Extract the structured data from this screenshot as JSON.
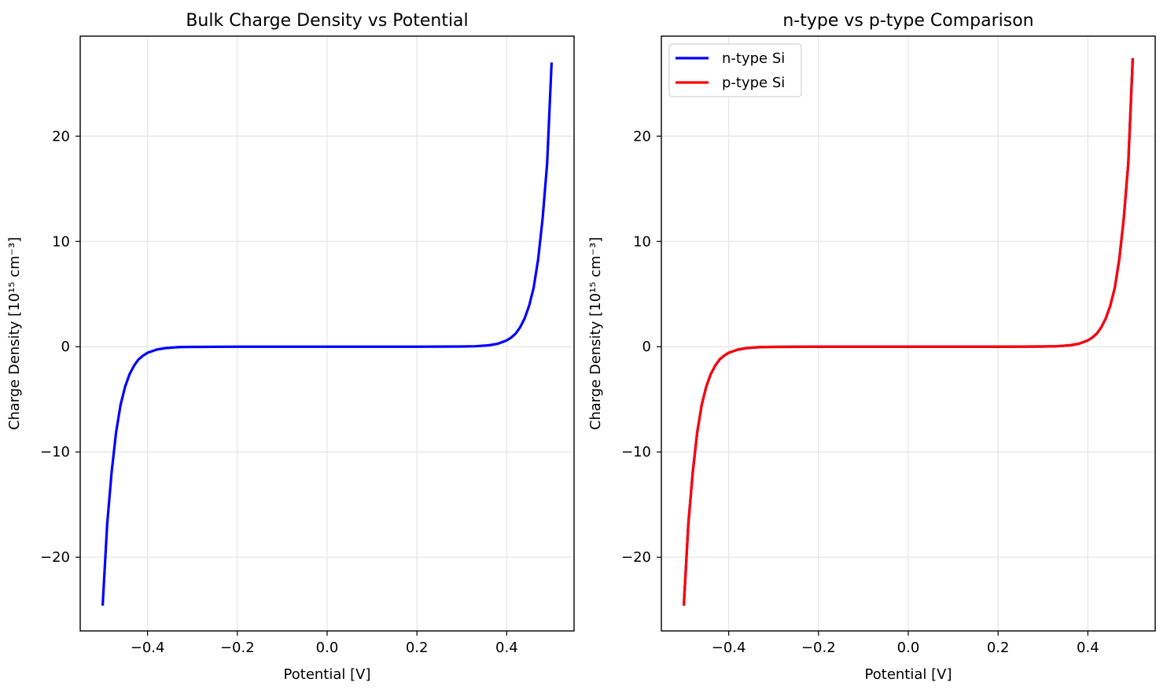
{
  "chart_data": [
    {
      "type": "line",
      "title": "Bulk Charge Density vs Potential",
      "xlabel": "Potential [V]",
      "ylabel": "Charge Density [10¹⁵ cm⁻³]",
      "xlim": [
        -0.55,
        0.55
      ],
      "ylim": [
        -27.0,
        29.5
      ],
      "xticks": [
        -0.4,
        -0.2,
        0.0,
        0.2,
        0.4
      ],
      "xtick_labels": [
        "−0.4",
        "−0.2",
        "0.0",
        "0.2",
        "0.4"
      ],
      "yticks": [
        -20,
        -10,
        0,
        10,
        20
      ],
      "ytick_labels": [
        "−20",
        "−10",
        "0",
        "10",
        "20"
      ],
      "grid": true,
      "legend": null,
      "x": [
        -0.5,
        -0.49,
        -0.48,
        -0.47,
        -0.46,
        -0.45,
        -0.44,
        -0.43,
        -0.42,
        -0.41,
        -0.4,
        -0.38,
        -0.36,
        -0.33,
        -0.3,
        -0.25,
        -0.2,
        -0.1,
        0.0,
        0.1,
        0.2,
        0.25,
        0.3,
        0.33,
        0.36,
        0.38,
        0.4,
        0.41,
        0.42,
        0.43,
        0.44,
        0.45,
        0.46,
        0.47,
        0.48,
        0.49,
        0.5
      ],
      "series": [
        {
          "color": "#0000ff",
          "values": [
            -24.6,
            -16.9,
            -11.9,
            -8.1,
            -5.5,
            -3.8,
            -2.6,
            -1.8,
            -1.2,
            -0.85,
            -0.58,
            -0.28,
            -0.13,
            -0.04,
            -0.02,
            -0.01,
            0.0,
            0.0,
            0.0,
            0.0,
            0.0,
            0.01,
            0.02,
            0.04,
            0.13,
            0.28,
            0.6,
            0.87,
            1.25,
            1.85,
            2.7,
            3.9,
            5.6,
            8.3,
            12.2,
            17.4,
            27.0
          ]
        }
      ]
    },
    {
      "type": "line",
      "title": "n-type vs p-type Comparison",
      "xlabel": "Potential [V]",
      "ylabel": "Charge Density [10¹⁵ cm⁻³]",
      "xlim": [
        -0.55,
        0.55
      ],
      "ylim": [
        -27.0,
        29.5
      ],
      "xticks": [
        -0.4,
        -0.2,
        0.0,
        0.2,
        0.4
      ],
      "xtick_labels": [
        "−0.4",
        "−0.2",
        "0.0",
        "0.2",
        "0.4"
      ],
      "yticks": [
        -20,
        -10,
        0,
        10,
        20
      ],
      "ytick_labels": [
        "−20",
        "−10",
        "0",
        "10",
        "20"
      ],
      "grid": true,
      "legend": "top-left",
      "x": [
        -0.5,
        -0.49,
        -0.48,
        -0.47,
        -0.46,
        -0.45,
        -0.44,
        -0.43,
        -0.42,
        -0.41,
        -0.4,
        -0.38,
        -0.36,
        -0.33,
        -0.3,
        -0.25,
        -0.2,
        -0.1,
        0.0,
        0.1,
        0.2,
        0.25,
        0.3,
        0.33,
        0.36,
        0.38,
        0.4,
        0.41,
        0.42,
        0.43,
        0.44,
        0.45,
        0.46,
        0.47,
        0.48,
        0.49,
        0.5
      ],
      "series": [
        {
          "name": "n-type Si",
          "color": "#0000ff",
          "values": [
            -24.6,
            -16.9,
            -11.9,
            -8.1,
            -5.5,
            -3.8,
            -2.6,
            -1.8,
            -1.2,
            -0.85,
            -0.58,
            -0.28,
            -0.13,
            -0.04,
            -0.02,
            -0.01,
            0.0,
            0.0,
            0.0,
            0.0,
            0.0,
            0.01,
            0.02,
            0.04,
            0.13,
            0.28,
            0.6,
            0.87,
            1.25,
            1.85,
            2.7,
            3.9,
            5.6,
            8.3,
            12.2,
            17.4,
            27.4
          ]
        },
        {
          "name": "p-type Si",
          "color": "#ff0000",
          "values": [
            -24.6,
            -16.9,
            -11.9,
            -8.1,
            -5.5,
            -3.8,
            -2.6,
            -1.8,
            -1.2,
            -0.85,
            -0.58,
            -0.28,
            -0.13,
            -0.04,
            -0.02,
            -0.01,
            0.0,
            0.0,
            0.0,
            0.0,
            0.0,
            0.01,
            0.02,
            0.04,
            0.13,
            0.28,
            0.6,
            0.87,
            1.25,
            1.85,
            2.7,
            3.9,
            5.6,
            8.3,
            12.2,
            17.4,
            27.4
          ]
        }
      ]
    }
  ]
}
